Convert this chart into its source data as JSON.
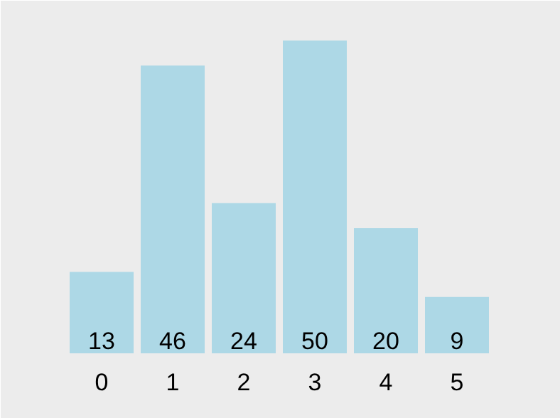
{
  "chart_data": {
    "type": "bar",
    "categories": [
      "0",
      "1",
      "2",
      "3",
      "4",
      "5"
    ],
    "values": [
      13,
      46,
      24,
      50,
      20,
      9
    ],
    "color": "#add8e6",
    "data_labels": true
  }
}
